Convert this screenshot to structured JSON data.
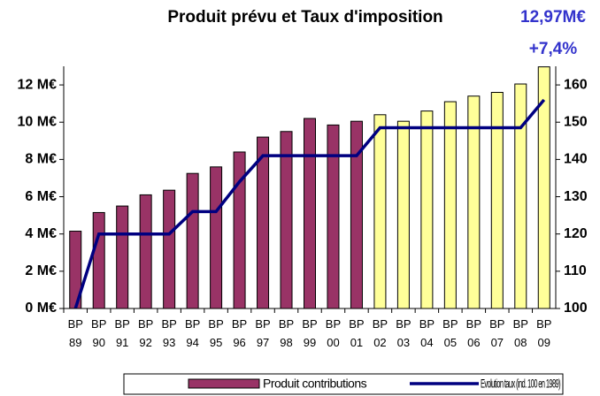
{
  "chart_data": {
    "type": "bar",
    "title": "Produit prévu et Taux d'imposition",
    "annotations": [
      "12,97M€",
      "+7,4%"
    ],
    "annotation_color": "#3333cc",
    "categories": [
      "BP 89",
      "BP 90",
      "BP 91",
      "BP 92",
      "BP 93",
      "BP 94",
      "BP 95",
      "BP 96",
      "BP 97",
      "BP 98",
      "BP 99",
      "BP 00",
      "BP 01",
      "BP 02",
      "BP 03",
      "BP 04",
      "BP 05",
      "BP 06",
      "BP 07",
      "BP 08",
      "BP 09"
    ],
    "series": [
      {
        "name": "Produit contributions",
        "color": "#993366",
        "colors": [
          "#993366",
          "#993366",
          "#993366",
          "#993366",
          "#993366",
          "#993366",
          "#993366",
          "#993366",
          "#993366",
          "#993366",
          "#993366",
          "#993366",
          "#993366",
          "#ffff99",
          "#ffff99",
          "#ffff99",
          "#ffff99",
          "#ffff99",
          "#ffff99",
          "#ffff99",
          "#ffff99"
        ],
        "values": [
          4.15,
          5.15,
          5.5,
          6.1,
          6.35,
          7.25,
          7.6,
          8.4,
          9.2,
          9.5,
          10.2,
          9.85,
          10.05,
          10.4,
          10.05,
          10.6,
          11.1,
          11.4,
          11.6,
          12.05,
          12.97
        ]
      },
      {
        "name": "Evolution taux (ind. 100 en 1989)",
        "color": "#000080",
        "axis": "y2",
        "type": "line",
        "values": [
          100,
          120,
          120,
          120,
          120,
          126,
          126,
          134,
          141,
          141,
          141,
          141,
          141,
          148.5,
          148.5,
          148.5,
          148.5,
          148.5,
          148.5,
          148.5,
          156
        ]
      }
    ],
    "ylim": [
      0,
      13
    ],
    "yticks": [
      {
        "value": 0,
        "label": "0 M€"
      },
      {
        "value": 2,
        "label": "2 M€"
      },
      {
        "value": 4,
        "label": "4 M€"
      },
      {
        "value": 6,
        "label": "6 M€"
      },
      {
        "value": 8,
        "label": "8 M€"
      },
      {
        "value": 10,
        "label": "10 M€"
      },
      {
        "value": 12,
        "label": "12 M€"
      }
    ],
    "y2lim": [
      100,
      165
    ],
    "y2ticks": [
      100,
      110,
      120,
      130,
      140,
      150,
      160
    ],
    "grid": false,
    "legend": "bottom"
  }
}
